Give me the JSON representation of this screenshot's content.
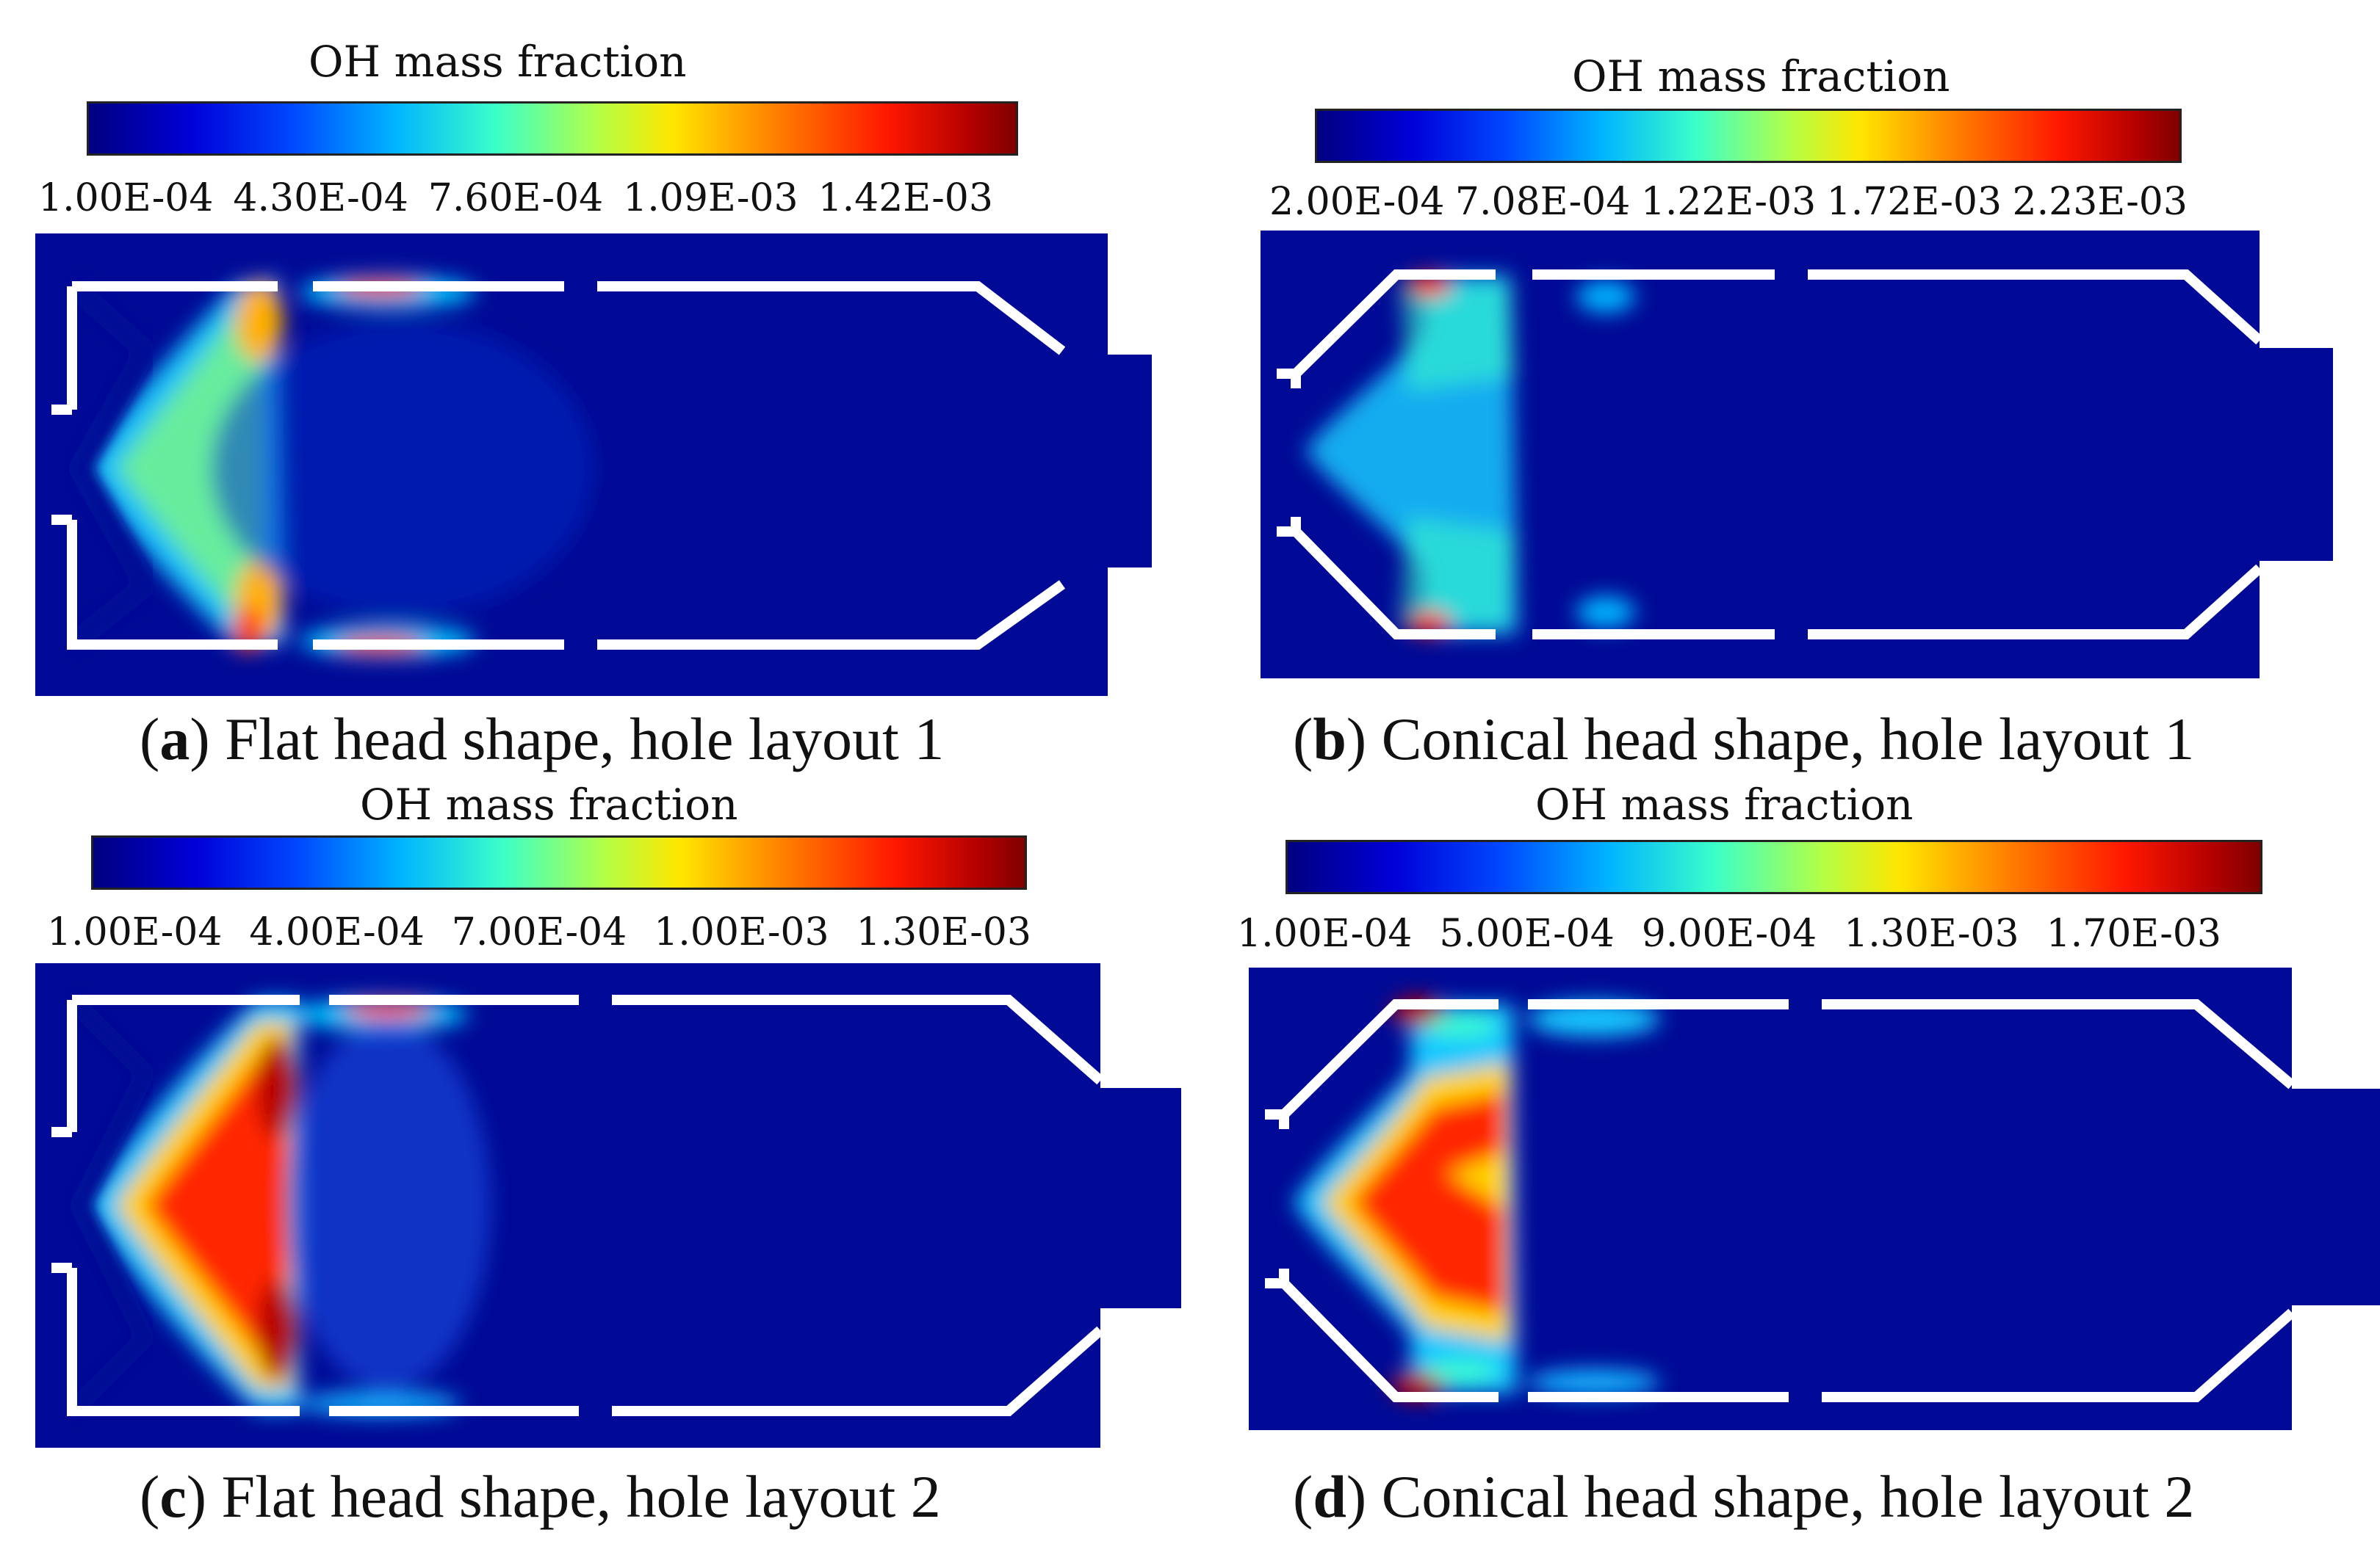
{
  "colors": {
    "field_background": "#000a96",
    "wall": "#ffffff"
  },
  "panels": [
    {
      "id": "a",
      "colorbar_title": "OH mass fraction",
      "ticks": [
        "1.00E-04",
        "4.30E-04",
        "7.60E-04",
        "1.09E-03",
        "1.42E-03"
      ],
      "caption_letter": "a",
      "caption_text": "Flat head shape, hole layout 1",
      "head_shape": "flat",
      "hole_layout": 1
    },
    {
      "id": "b",
      "colorbar_title": "OH mass fraction",
      "ticks": [
        "2.00E-04",
        "7.08E-04",
        "1.22E-03",
        "1.72E-03",
        "2.23E-03"
      ],
      "caption_letter": "b",
      "caption_text": "Conical head shape, hole layout 1",
      "head_shape": "conical",
      "hole_layout": 1
    },
    {
      "id": "c",
      "colorbar_title": "OH mass fraction",
      "ticks": [
        "1.00E-04",
        "4.00E-04",
        "7.00E-04",
        "1.00E-03",
        "1.30E-03"
      ],
      "caption_letter": "c",
      "caption_text": "Flat head shape, hole layout 2",
      "head_shape": "flat",
      "hole_layout": 2
    },
    {
      "id": "d",
      "colorbar_title": "OH mass fraction",
      "ticks": [
        "1.00E-04",
        "5.00E-04",
        "9.00E-04",
        "1.30E-03",
        "1.70E-03"
      ],
      "caption_letter": "d",
      "caption_text": "Conical head shape, hole layout 2",
      "head_shape": "conical",
      "hole_layout": 2
    }
  ]
}
